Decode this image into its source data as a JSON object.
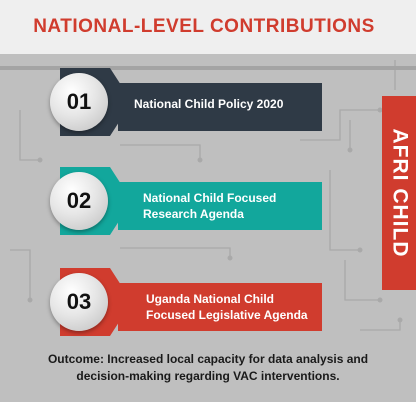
{
  "title": "NATIONAL-LEVEL CONTRIBUTIONS",
  "side_banner": "AFRI CHILD",
  "items": [
    {
      "number": "01",
      "label": "National Child Policy 2020",
      "color": "#2f3a46"
    },
    {
      "number": "02",
      "label": "National Child Focused Research Agenda",
      "color": "#12a79c"
    },
    {
      "number": "03",
      "label": "Uganda National Child Focused Legislative Agenda",
      "color": "#d03c2e"
    }
  ],
  "outcome": "Outcome: Increased local capacity for data analysis and decision-making regarding VAC interventions.",
  "colors": {
    "title": "#d03c2e",
    "banner": "#d03c2e",
    "background": "#bfbfbf",
    "outcome_text": "#1a1a1a"
  }
}
